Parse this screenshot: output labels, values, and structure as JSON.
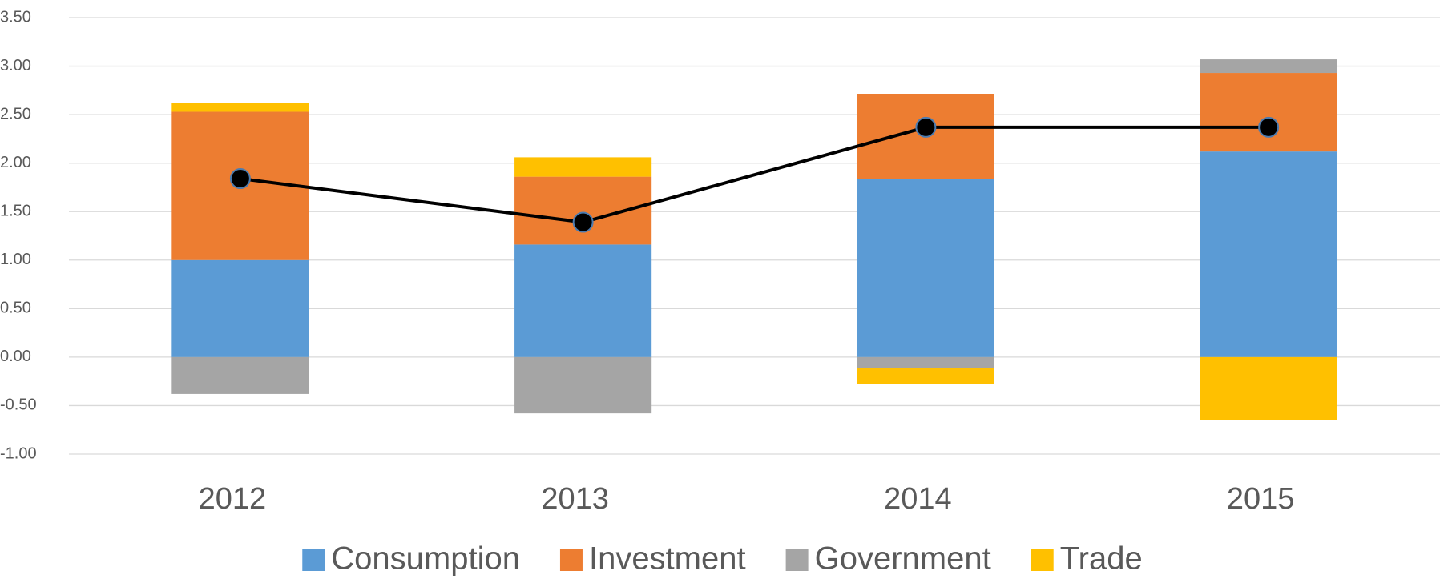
{
  "chart_data": {
    "type": "bar",
    "stacked": true,
    "categories": [
      "2012",
      "2013",
      "2014",
      "2015"
    ],
    "series": [
      {
        "name": "Consumption",
        "color": "#5b9bd5",
        "values": [
          1.0,
          1.16,
          1.84,
          2.12
        ]
      },
      {
        "name": "Investment",
        "color": "#ed7d31",
        "values": [
          1.53,
          0.7,
          0.87,
          0.81
        ]
      },
      {
        "name": "Government",
        "color": "#a5a5a5",
        "values": [
          -0.38,
          -0.58,
          -0.11,
          0.14
        ]
      },
      {
        "name": "Trade",
        "color": "#ffc000",
        "values": [
          0.09,
          0.2,
          -0.17,
          -0.65
        ]
      },
      {
        "type": "line",
        "color": "#000000",
        "values": [
          1.84,
          1.39,
          2.37,
          2.37
        ]
      }
    ],
    "ylim": [
      -1.0,
      3.5
    ],
    "yticks": [
      {
        "value": -1.0,
        "label": "-1.00"
      },
      {
        "value": -0.5,
        "label": "-0.50"
      },
      {
        "value": 0,
        "label": "0.00"
      },
      {
        "value": 0.5,
        "label": "0.50"
      },
      {
        "value": 1.0,
        "label": "1.00"
      },
      {
        "value": 1.5,
        "label": "1.50"
      },
      {
        "value": 2.0,
        "label": "2.00"
      },
      {
        "value": 2.5,
        "label": "2.50"
      },
      {
        "value": 3.0,
        "label": "3.00"
      },
      {
        "value": 3.5,
        "label": "3.50"
      }
    ],
    "grid": true,
    "legend": "bottom"
  }
}
